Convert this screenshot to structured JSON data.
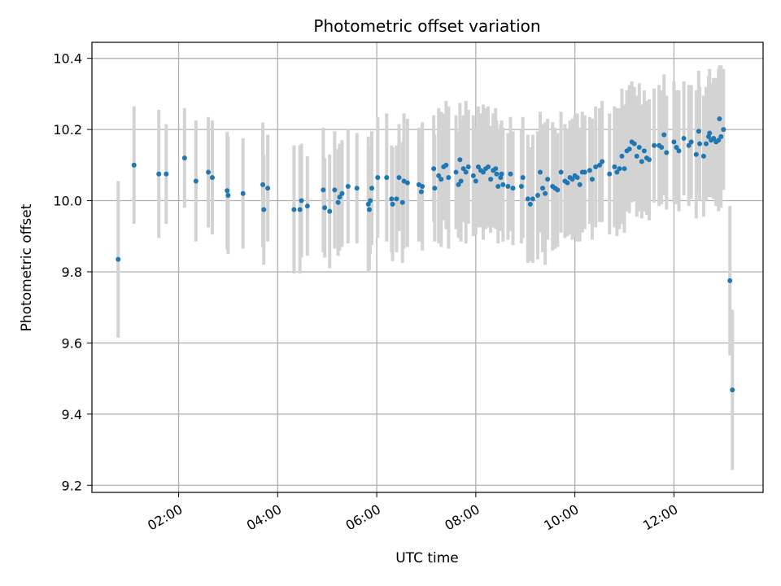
{
  "chart_data": {
    "type": "scatter",
    "title": "Photometric offset variation",
    "xlabel": "UTC time",
    "ylabel": "Photometric offset",
    "grid": true,
    "x_unit": "hours (UTC)",
    "xlim": [
      0.25,
      13.8
    ],
    "ylim": [
      9.18,
      10.445
    ],
    "x_ticks": [
      2,
      4,
      6,
      8,
      10,
      12
    ],
    "x_tick_labels": [
      "02:00",
      "04:00",
      "06:00",
      "08:00",
      "10:00",
      "12:00"
    ],
    "y_ticks": [
      9.2,
      9.4,
      9.6,
      9.8,
      10.0,
      10.2,
      10.4
    ],
    "y_tick_labels": [
      "9.2",
      "9.4",
      "9.6",
      "9.8",
      "10.0",
      "10.2",
      "10.4"
    ],
    "colors": {
      "points": "#1f77b4",
      "errorbars": "#d3d3d3",
      "grid": "#b0b0b0"
    },
    "series": [
      {
        "points": [
          {
            "x": 0.78,
            "y": 9.835,
            "err": 0.22
          },
          {
            "x": 1.1,
            "y": 10.1,
            "err": 0.165
          },
          {
            "x": 1.6,
            "y": 10.075,
            "err": 0.18
          },
          {
            "x": 1.75,
            "y": 10.075,
            "err": 0.14
          },
          {
            "x": 2.12,
            "y": 10.12,
            "err": 0.14
          },
          {
            "x": 2.35,
            "y": 10.055,
            "err": 0.17
          },
          {
            "x": 2.6,
            "y": 10.08,
            "err": 0.155
          },
          {
            "x": 2.68,
            "y": 10.065,
            "err": 0.16
          },
          {
            "x": 2.98,
            "y": 10.028,
            "err": 0.165
          },
          {
            "x": 3.0,
            "y": 10.015,
            "err": 0.165
          },
          {
            "x": 3.3,
            "y": 10.02,
            "err": 0.155
          },
          {
            "x": 3.7,
            "y": 10.045,
            "err": 0.175
          },
          {
            "x": 3.72,
            "y": 9.975,
            "err": 0.155
          },
          {
            "x": 3.8,
            "y": 10.035,
            "err": 0.15
          },
          {
            "x": 4.33,
            "y": 9.975,
            "err": 0.18
          },
          {
            "x": 4.45,
            "y": 9.975,
            "err": 0.18
          },
          {
            "x": 4.48,
            "y": 10.0,
            "err": 0.16
          },
          {
            "x": 4.6,
            "y": 9.985,
            "err": 0.14
          },
          {
            "x": 4.92,
            "y": 10.03,
            "err": 0.175
          },
          {
            "x": 4.95,
            "y": 9.98,
            "err": 0.14
          },
          {
            "x": 5.05,
            "y": 9.97,
            "err": 0.16
          },
          {
            "x": 5.15,
            "y": 10.03,
            "err": 0.165
          },
          {
            "x": 5.22,
            "y": 9.995,
            "err": 0.15
          },
          {
            "x": 5.25,
            "y": 10.01,
            "err": 0.15
          },
          {
            "x": 5.3,
            "y": 10.02,
            "err": 0.15
          },
          {
            "x": 5.42,
            "y": 10.04,
            "err": 0.16
          },
          {
            "x": 5.6,
            "y": 10.035,
            "err": 0.155
          },
          {
            "x": 5.83,
            "y": 9.99,
            "err": 0.19
          },
          {
            "x": 5.85,
            "y": 9.975,
            "err": 0.17
          },
          {
            "x": 5.87,
            "y": 10.0,
            "err": 0.15
          },
          {
            "x": 5.9,
            "y": 10.035,
            "err": 0.16
          },
          {
            "x": 6.02,
            "y": 10.065,
            "err": 0.17
          },
          {
            "x": 6.2,
            "y": 10.065,
            "err": 0.18
          },
          {
            "x": 6.3,
            "y": 10.005,
            "err": 0.15
          },
          {
            "x": 6.32,
            "y": 9.99,
            "err": 0.16
          },
          {
            "x": 6.4,
            "y": 10.005,
            "err": 0.15
          },
          {
            "x": 6.45,
            "y": 10.065,
            "err": 0.15
          },
          {
            "x": 6.52,
            "y": 9.995,
            "err": 0.17
          },
          {
            "x": 6.55,
            "y": 10.055,
            "err": 0.19
          },
          {
            "x": 6.62,
            "y": 10.05,
            "err": 0.18
          },
          {
            "x": 6.85,
            "y": 10.045,
            "err": 0.16
          },
          {
            "x": 6.9,
            "y": 10.025,
            "err": 0.14
          },
          {
            "x": 6.92,
            "y": 10.04,
            "err": 0.18
          },
          {
            "x": 7.15,
            "y": 10.09,
            "err": 0.15
          },
          {
            "x": 7.17,
            "y": 10.035,
            "err": 0.15
          },
          {
            "x": 7.25,
            "y": 10.07,
            "err": 0.19
          },
          {
            "x": 7.3,
            "y": 10.06,
            "err": 0.19
          },
          {
            "x": 7.35,
            "y": 10.095,
            "err": 0.15
          },
          {
            "x": 7.4,
            "y": 10.1,
            "err": 0.18
          },
          {
            "x": 7.45,
            "y": 10.065,
            "err": 0.2
          },
          {
            "x": 7.6,
            "y": 10.08,
            "err": 0.16
          },
          {
            "x": 7.65,
            "y": 10.045,
            "err": 0.15
          },
          {
            "x": 7.68,
            "y": 10.115,
            "err": 0.16
          },
          {
            "x": 7.7,
            "y": 10.055,
            "err": 0.17
          },
          {
            "x": 7.75,
            "y": 10.09,
            "err": 0.15
          },
          {
            "x": 7.8,
            "y": 10.08,
            "err": 0.2
          },
          {
            "x": 7.85,
            "y": 10.095,
            "err": 0.16
          },
          {
            "x": 7.95,
            "y": 10.07,
            "err": 0.17
          },
          {
            "x": 8.0,
            "y": 10.055,
            "err": 0.15
          },
          {
            "x": 8.05,
            "y": 10.095,
            "err": 0.17
          },
          {
            "x": 8.1,
            "y": 10.085,
            "err": 0.16
          },
          {
            "x": 8.15,
            "y": 10.08,
            "err": 0.19
          },
          {
            "x": 8.2,
            "y": 10.09,
            "err": 0.17
          },
          {
            "x": 8.25,
            "y": 10.095,
            "err": 0.17
          },
          {
            "x": 8.3,
            "y": 10.06,
            "err": 0.15
          },
          {
            "x": 8.35,
            "y": 10.085,
            "err": 0.16
          },
          {
            "x": 8.4,
            "y": 10.09,
            "err": 0.17
          },
          {
            "x": 8.42,
            "y": 10.075,
            "err": 0.15
          },
          {
            "x": 8.45,
            "y": 10.04,
            "err": 0.16
          },
          {
            "x": 8.5,
            "y": 10.065,
            "err": 0.15
          },
          {
            "x": 8.52,
            "y": 10.075,
            "err": 0.15
          },
          {
            "x": 8.55,
            "y": 10.045,
            "err": 0.16
          },
          {
            "x": 8.65,
            "y": 10.04,
            "err": 0.15
          },
          {
            "x": 8.7,
            "y": 10.075,
            "err": 0.16
          },
          {
            "x": 8.75,
            "y": 10.035,
            "err": 0.16
          },
          {
            "x": 8.92,
            "y": 10.04,
            "err": 0.16
          },
          {
            "x": 8.95,
            "y": 10.065,
            "err": 0.17
          },
          {
            "x": 9.05,
            "y": 10.005,
            "err": 0.18
          },
          {
            "x": 9.1,
            "y": 9.99,
            "err": 0.16
          },
          {
            "x": 9.15,
            "y": 10.005,
            "err": 0.18
          },
          {
            "x": 9.25,
            "y": 10.015,
            "err": 0.18
          },
          {
            "x": 9.3,
            "y": 10.08,
            "err": 0.17
          },
          {
            "x": 9.35,
            "y": 10.035,
            "err": 0.18
          },
          {
            "x": 9.4,
            "y": 10.02,
            "err": 0.2
          },
          {
            "x": 9.45,
            "y": 10.06,
            "err": 0.17
          },
          {
            "x": 9.55,
            "y": 10.04,
            "err": 0.18
          },
          {
            "x": 9.6,
            "y": 10.035,
            "err": 0.17
          },
          {
            "x": 9.65,
            "y": 10.03,
            "err": 0.16
          },
          {
            "x": 9.72,
            "y": 10.08,
            "err": 0.17
          },
          {
            "x": 9.8,
            "y": 10.055,
            "err": 0.16
          },
          {
            "x": 9.85,
            "y": 10.05,
            "err": 0.15
          },
          {
            "x": 9.9,
            "y": 10.065,
            "err": 0.16
          },
          {
            "x": 9.95,
            "y": 10.06,
            "err": 0.17
          },
          {
            "x": 10.0,
            "y": 10.07,
            "err": 0.17
          },
          {
            "x": 10.05,
            "y": 10.065,
            "err": 0.18
          },
          {
            "x": 10.1,
            "y": 10.045,
            "err": 0.16
          },
          {
            "x": 10.15,
            "y": 10.08,
            "err": 0.17
          },
          {
            "x": 10.2,
            "y": 10.08,
            "err": 0.16
          },
          {
            "x": 10.3,
            "y": 10.085,
            "err": 0.15
          },
          {
            "x": 10.35,
            "y": 10.06,
            "err": 0.17
          },
          {
            "x": 10.42,
            "y": 10.095,
            "err": 0.17
          },
          {
            "x": 10.5,
            "y": 10.1,
            "err": 0.16
          },
          {
            "x": 10.55,
            "y": 10.11,
            "err": 0.17
          },
          {
            "x": 10.7,
            "y": 10.075,
            "err": 0.17
          },
          {
            "x": 10.8,
            "y": 10.095,
            "err": 0.17
          },
          {
            "x": 10.85,
            "y": 10.08,
            "err": 0.18
          },
          {
            "x": 10.9,
            "y": 10.09,
            "err": 0.17
          },
          {
            "x": 10.95,
            "y": 10.125,
            "err": 0.19
          },
          {
            "x": 11.0,
            "y": 10.09,
            "err": 0.18
          },
          {
            "x": 11.05,
            "y": 10.14,
            "err": 0.17
          },
          {
            "x": 11.1,
            "y": 10.145,
            "err": 0.18
          },
          {
            "x": 11.15,
            "y": 10.165,
            "err": 0.17
          },
          {
            "x": 11.2,
            "y": 10.16,
            "err": 0.16
          },
          {
            "x": 11.25,
            "y": 10.125,
            "err": 0.17
          },
          {
            "x": 11.3,
            "y": 10.15,
            "err": 0.18
          },
          {
            "x": 11.35,
            "y": 10.11,
            "err": 0.16
          },
          {
            "x": 11.4,
            "y": 10.14,
            "err": 0.17
          },
          {
            "x": 11.45,
            "y": 10.12,
            "err": 0.16
          },
          {
            "x": 11.5,
            "y": 10.115,
            "err": 0.17
          },
          {
            "x": 11.6,
            "y": 10.155,
            "err": 0.16
          },
          {
            "x": 11.7,
            "y": 10.155,
            "err": 0.17
          },
          {
            "x": 11.75,
            "y": 10.15,
            "err": 0.16
          },
          {
            "x": 11.8,
            "y": 10.185,
            "err": 0.17
          },
          {
            "x": 11.85,
            "y": 10.135,
            "err": 0.16
          },
          {
            "x": 12.0,
            "y": 10.165,
            "err": 0.17
          },
          {
            "x": 12.05,
            "y": 10.15,
            "err": 0.16
          },
          {
            "x": 12.1,
            "y": 10.14,
            "err": 0.17
          },
          {
            "x": 12.2,
            "y": 10.175,
            "err": 0.16
          },
          {
            "x": 12.3,
            "y": 10.155,
            "err": 0.17
          },
          {
            "x": 12.35,
            "y": 10.165,
            "err": 0.16
          },
          {
            "x": 12.45,
            "y": 10.13,
            "err": 0.18
          },
          {
            "x": 12.5,
            "y": 10.195,
            "err": 0.17
          },
          {
            "x": 12.52,
            "y": 10.16,
            "err": 0.16
          },
          {
            "x": 12.6,
            "y": 10.125,
            "err": 0.17
          },
          {
            "x": 12.65,
            "y": 10.16,
            "err": 0.16
          },
          {
            "x": 12.7,
            "y": 10.18,
            "err": 0.17
          },
          {
            "x": 12.72,
            "y": 10.19,
            "err": 0.18
          },
          {
            "x": 12.75,
            "y": 10.17,
            "err": 0.16
          },
          {
            "x": 12.8,
            "y": 10.175,
            "err": 0.17
          },
          {
            "x": 12.85,
            "y": 10.165,
            "err": 0.18
          },
          {
            "x": 12.9,
            "y": 10.17,
            "err": 0.2
          },
          {
            "x": 12.92,
            "y": 10.23,
            "err": 0.15
          },
          {
            "x": 12.95,
            "y": 10.18,
            "err": 0.2
          },
          {
            "x": 13.0,
            "y": 10.2,
            "err": 0.17
          },
          {
            "x": 13.13,
            "y": 9.775,
            "err": 0.21
          },
          {
            "x": 13.18,
            "y": 9.468,
            "err": 0.225
          }
        ]
      }
    ]
  }
}
